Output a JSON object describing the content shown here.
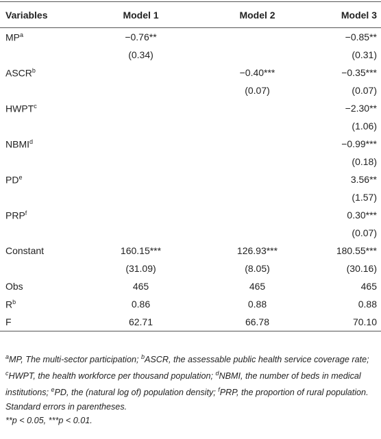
{
  "table": {
    "header": [
      "Variables",
      "Model 1",
      "Model 2",
      "Model 3"
    ],
    "rows": [
      {
        "variable": "MP",
        "sup": "a",
        "cells": [
          "−0.76**",
          null,
          "−0.85**"
        ]
      },
      {
        "cells": [
          "(0.34)",
          null,
          "(0.31)"
        ]
      },
      {
        "variable": "ASCR",
        "sup": "b",
        "cells": [
          null,
          "−0.40***",
          "−0.35***"
        ]
      },
      {
        "cells": [
          null,
          "(0.07)",
          "(0.07)"
        ]
      },
      {
        "variable": "HWPT",
        "sup": "c",
        "cells": [
          null,
          null,
          "−2.30**"
        ]
      },
      {
        "cells": [
          null,
          null,
          "(1.06)"
        ]
      },
      {
        "variable": "NBMI",
        "sup": "d",
        "cells": [
          null,
          null,
          "−0.99***"
        ]
      },
      {
        "cells": [
          null,
          null,
          "(0.18)"
        ]
      },
      {
        "variable": "PD",
        "sup": "e",
        "cells": [
          null,
          null,
          "3.56**"
        ]
      },
      {
        "cells": [
          null,
          null,
          "(1.57)"
        ]
      },
      {
        "variable": "PRP",
        "sup": "f",
        "cells": [
          null,
          null,
          "0.30***"
        ]
      },
      {
        "cells": [
          null,
          null,
          "(0.07)"
        ]
      },
      {
        "variable": "Constant",
        "cells": [
          "160.15***",
          "126.93***",
          "180.55***"
        ]
      },
      {
        "cells": [
          "(31.09)",
          "(8.05)",
          "(30.16)"
        ]
      },
      {
        "variable": "Obs",
        "cells": [
          "465",
          "465",
          "465"
        ]
      },
      {
        "variable": "R",
        "sup": "b",
        "cells": [
          "0.86",
          "0.88",
          "0.88"
        ]
      },
      {
        "variable": "F",
        "cells": [
          "62.71",
          "66.78",
          "70.10"
        ]
      }
    ]
  },
  "notes": {
    "definitions": [
      {
        "sup": "a",
        "text": "MP, The multi-sector participation;"
      },
      {
        "sup": "b",
        "text": "ASCR, the assessable public health service coverage rate;"
      },
      {
        "sup": "c",
        "text": "HWPT, the health workforce per thousand population;"
      },
      {
        "sup": "d",
        "text": "NBMI, the number of beds in medical institutions;"
      },
      {
        "sup": "e",
        "text": "PD, the (natural log of) population density;"
      },
      {
        "sup": "f",
        "text": "PRP, the proportion of rural population."
      }
    ],
    "se": "Standard errors in parentheses.",
    "sig": "**p < 0.05, ***p < 0.01."
  }
}
